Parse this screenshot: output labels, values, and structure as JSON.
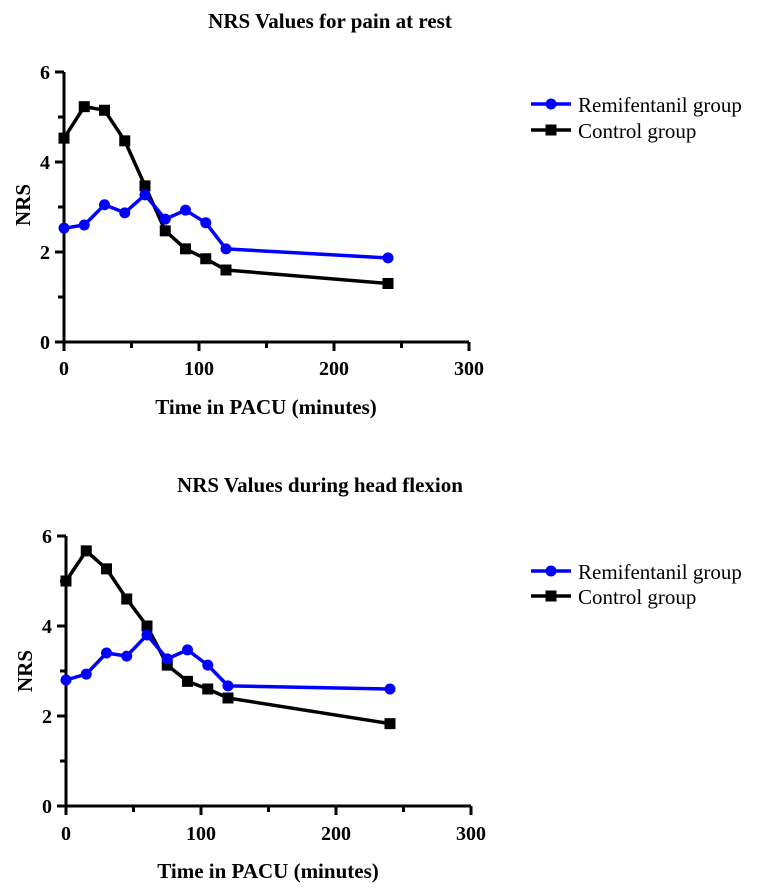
{
  "chart_data": [
    {
      "type": "line",
      "title": "NRS Values for pain at rest",
      "xlabel": "Time in PACU (minutes)",
      "ylabel": "NRS",
      "xlim": [
        0,
        300
      ],
      "ylim": [
        0,
        6
      ],
      "xticks": [
        "0",
        "100",
        "200",
        "300"
      ],
      "yticks": [
        "0",
        "2",
        "4",
        "6"
      ],
      "grid": false,
      "legend_position": "top-right",
      "x": [
        0,
        15,
        30,
        45,
        60,
        75,
        90,
        105,
        120,
        240
      ],
      "series": [
        {
          "name": "Remifentanil group",
          "color": "#0000ff",
          "marker": "circle",
          "values": [
            2.53,
            2.6,
            3.05,
            2.87,
            3.27,
            2.73,
            2.93,
            2.65,
            2.07,
            1.87
          ]
        },
        {
          "name": "Control group",
          "color": "#000000",
          "marker": "square",
          "values": [
            4.53,
            5.23,
            5.15,
            4.47,
            3.47,
            2.47,
            2.07,
            1.85,
            1.6,
            1.3
          ]
        }
      ]
    },
    {
      "type": "line",
      "title": "NRS Values during head flexion",
      "xlabel": "Time in PACU (minutes)",
      "ylabel": "NRS",
      "xlim": [
        0,
        300
      ],
      "ylim": [
        0,
        6
      ],
      "xticks": [
        "0",
        "100",
        "200",
        "300"
      ],
      "yticks": [
        "0",
        "2",
        "4",
        "6"
      ],
      "grid": false,
      "legend_position": "top-right",
      "x": [
        0,
        15,
        30,
        45,
        60,
        75,
        90,
        105,
        120,
        240
      ],
      "series": [
        {
          "name": "Remifentanil group",
          "color": "#0000ff",
          "marker": "circle",
          "values": [
            2.8,
            2.93,
            3.4,
            3.33,
            3.8,
            3.27,
            3.47,
            3.13,
            2.67,
            2.6
          ]
        },
        {
          "name": "Control group",
          "color": "#000000",
          "marker": "square",
          "values": [
            5.0,
            5.67,
            5.27,
            4.6,
            4.0,
            3.13,
            2.77,
            2.6,
            2.4,
            1.83
          ]
        }
      ]
    }
  ]
}
